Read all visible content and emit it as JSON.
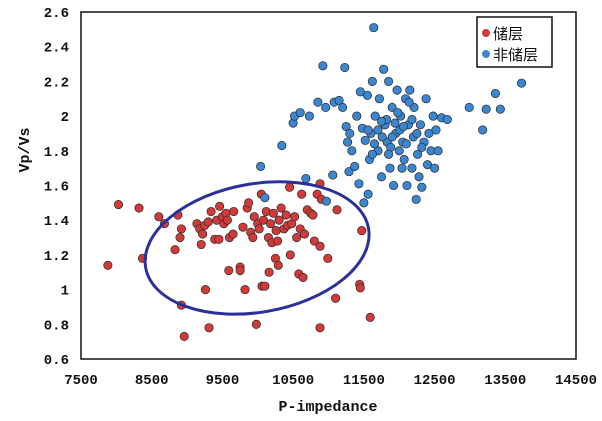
{
  "chart_data": {
    "type": "scatter",
    "title": "",
    "xlabel": "P-impedance",
    "ylabel": "Vp/Vs",
    "xlim": [
      7500,
      14500
    ],
    "ylim": [
      0.6,
      2.6
    ],
    "xticks": [
      "7500",
      "8500",
      "9500",
      "10500",
      "11500",
      "12500",
      "13500",
      "14500"
    ],
    "yticks": [
      "0.6",
      "0.8",
      "1",
      "1.2",
      "1.4",
      "1.6",
      "1.8",
      "2",
      "2.2",
      "2.4",
      "2.6"
    ],
    "grid": false,
    "legend_position": "top-right",
    "series": [
      {
        "name": "储层",
        "color": "#d23a3a",
        "points": [
          [
            7880,
            1.14
          ],
          [
            8030,
            1.49
          ],
          [
            8320,
            1.47
          ],
          [
            8370,
            1.18
          ],
          [
            8600,
            1.42
          ],
          [
            8680,
            1.38
          ],
          [
            8830,
            1.23
          ],
          [
            8870,
            1.43
          ],
          [
            8900,
            1.3
          ],
          [
            8920,
            1.35
          ],
          [
            8920,
            0.91
          ],
          [
            8960,
            0.73
          ],
          [
            9140,
            1.38
          ],
          [
            9180,
            1.35
          ],
          [
            9200,
            1.26
          ],
          [
            9220,
            1.32
          ],
          [
            9250,
            1.37
          ],
          [
            9260,
            1.0
          ],
          [
            9300,
            1.39
          ],
          [
            9310,
            0.78
          ],
          [
            9340,
            1.45
          ],
          [
            9390,
            1.29
          ],
          [
            9420,
            1.4
          ],
          [
            9450,
            1.29
          ],
          [
            9460,
            1.48
          ],
          [
            9500,
            1.42
          ],
          [
            9520,
            1.38
          ],
          [
            9550,
            1.44
          ],
          [
            9570,
            1.4
          ],
          [
            9590,
            1.11
          ],
          [
            9600,
            1.3
          ],
          [
            9650,
            1.32
          ],
          [
            9660,
            1.45
          ],
          [
            9750,
            1.13
          ],
          [
            9750,
            1.11
          ],
          [
            9790,
            1.36
          ],
          [
            9820,
            1.0
          ],
          [
            9850,
            1.47
          ],
          [
            9870,
            1.5
          ],
          [
            9900,
            1.33
          ],
          [
            9930,
            1.3
          ],
          [
            9950,
            1.42
          ],
          [
            9980,
            0.8
          ],
          [
            10000,
            1.38
          ],
          [
            10020,
            1.35
          ],
          [
            10050,
            1.55
          ],
          [
            10060,
            1.02
          ],
          [
            10080,
            1.4
          ],
          [
            10100,
            1.02
          ],
          [
            10120,
            1.45
          ],
          [
            10150,
            1.3
          ],
          [
            10160,
            1.1
          ],
          [
            10180,
            1.38
          ],
          [
            10200,
            1.27
          ],
          [
            10220,
            1.44
          ],
          [
            10250,
            1.18
          ],
          [
            10260,
            1.34
          ],
          [
            10280,
            1.28
          ],
          [
            10290,
            1.14
          ],
          [
            10300,
            1.4
          ],
          [
            10330,
            1.47
          ],
          [
            10370,
            1.35
          ],
          [
            10400,
            1.43
          ],
          [
            10420,
            1.37
          ],
          [
            10450,
            1.59
          ],
          [
            10460,
            1.2
          ],
          [
            10480,
            1.38
          ],
          [
            10520,
            1.42
          ],
          [
            10550,
            1.3
          ],
          [
            10580,
            1.09
          ],
          [
            10600,
            1.35
          ],
          [
            10620,
            1.55
          ],
          [
            10640,
            1.07
          ],
          [
            10660,
            1.32
          ],
          [
            10700,
            1.46
          ],
          [
            10750,
            1.44
          ],
          [
            10780,
            1.43
          ],
          [
            10800,
            1.28
          ],
          [
            10840,
            1.55
          ],
          [
            10880,
            1.25
          ],
          [
            10880,
            0.78
          ],
          [
            10900,
            1.52
          ],
          [
            10880,
            1.61
          ],
          [
            10990,
            1.18
          ],
          [
            11100,
            0.95
          ],
          [
            11120,
            1.46
          ],
          [
            11440,
            1.03
          ],
          [
            11450,
            1.01
          ],
          [
            11470,
            1.34
          ],
          [
            11590,
            0.84
          ]
        ]
      },
      {
        "name": "非储层",
        "color": "#3a86d0",
        "points": [
          [
            10040,
            1.71
          ],
          [
            10100,
            1.53
          ],
          [
            10340,
            1.83
          ],
          [
            10500,
            1.96
          ],
          [
            10520,
            2.0
          ],
          [
            10600,
            2.02
          ],
          [
            10680,
            1.64
          ],
          [
            10730,
            2.0
          ],
          [
            10850,
            2.08
          ],
          [
            10920,
            2.29
          ],
          [
            10960,
            2.05
          ],
          [
            10970,
            1.51
          ],
          [
            11060,
            1.66
          ],
          [
            11080,
            2.08
          ],
          [
            11150,
            2.09
          ],
          [
            11200,
            2.05
          ],
          [
            11230,
            2.28
          ],
          [
            11250,
            1.94
          ],
          [
            11270,
            1.85
          ],
          [
            11290,
            1.68
          ],
          [
            11300,
            1.9
          ],
          [
            11330,
            1.8
          ],
          [
            11370,
            1.71
          ],
          [
            11400,
            2.0
          ],
          [
            11430,
            1.61
          ],
          [
            11450,
            2.14
          ],
          [
            11480,
            1.93
          ],
          [
            11500,
            1.5
          ],
          [
            11520,
            1.86
          ],
          [
            11550,
            2.12
          ],
          [
            11560,
            1.55
          ],
          [
            11580,
            1.75
          ],
          [
            11600,
            1.9
          ],
          [
            11620,
            2.2
          ],
          [
            11640,
            2.51
          ],
          [
            11660,
            2.0
          ],
          [
            11700,
            1.8
          ],
          [
            11720,
            2.1
          ],
          [
            11750,
            1.65
          ],
          [
            11780,
            2.27
          ],
          [
            11800,
            1.95
          ],
          [
            11830,
            1.85
          ],
          [
            11850,
            2.2
          ],
          [
            11870,
            1.7
          ],
          [
            11900,
            2.05
          ],
          [
            11920,
            1.6
          ],
          [
            11950,
            1.9
          ],
          [
            11970,
            2.15
          ],
          [
            12000,
            1.8
          ],
          [
            12020,
            2.0
          ],
          [
            12050,
            1.85
          ],
          [
            12070,
            1.75
          ],
          [
            12090,
            2.1
          ],
          [
            12110,
            1.6
          ],
          [
            12130,
            1.95
          ],
          [
            12150,
            2.15
          ],
          [
            12180,
            1.7
          ],
          [
            12200,
            1.88
          ],
          [
            12210,
            2.05
          ],
          [
            12240,
            1.52
          ],
          [
            12260,
            1.78
          ],
          [
            12280,
            1.65
          ],
          [
            12300,
            1.95
          ],
          [
            12320,
            1.59
          ],
          [
            12350,
            1.85
          ],
          [
            12380,
            2.1
          ],
          [
            12400,
            1.72
          ],
          [
            12420,
            1.9
          ],
          [
            12450,
            1.8
          ],
          [
            12480,
            2.0
          ],
          [
            12500,
            1.7
          ],
          [
            12520,
            1.92
          ],
          [
            12550,
            1.8
          ],
          [
            12600,
            1.99
          ],
          [
            12680,
            1.98
          ],
          [
            12990,
            2.05
          ],
          [
            13180,
            1.92
          ],
          [
            13230,
            2.04
          ],
          [
            13360,
            2.13
          ],
          [
            13430,
            2.04
          ],
          [
            13730,
            2.19
          ],
          [
            11700,
            1.92
          ],
          [
            11760,
            1.88
          ],
          [
            11820,
            1.98
          ],
          [
            11880,
            1.82
          ],
          [
            11940,
            1.96
          ],
          [
            12010,
            1.92
          ],
          [
            12060,
            1.94
          ],
          [
            11650,
            1.84
          ],
          [
            11900,
            1.88
          ],
          [
            12100,
            1.84
          ],
          [
            12180,
            1.98
          ],
          [
            11980,
            2.02
          ],
          [
            11850,
            1.78
          ],
          [
            12250,
            1.9
          ],
          [
            11750,
            1.97
          ],
          [
            12040,
            1.7
          ],
          [
            11560,
            1.92
          ],
          [
            11620,
            1.78
          ],
          [
            12320,
            1.82
          ],
          [
            12140,
            2.08
          ]
        ]
      }
    ],
    "annotations": [
      {
        "type": "ellipse",
        "center": [
          9990,
          1.24
        ],
        "semi_axis_x": 1600,
        "semi_axis_y": 0.37,
        "color": "#2b2f9a"
      }
    ]
  }
}
